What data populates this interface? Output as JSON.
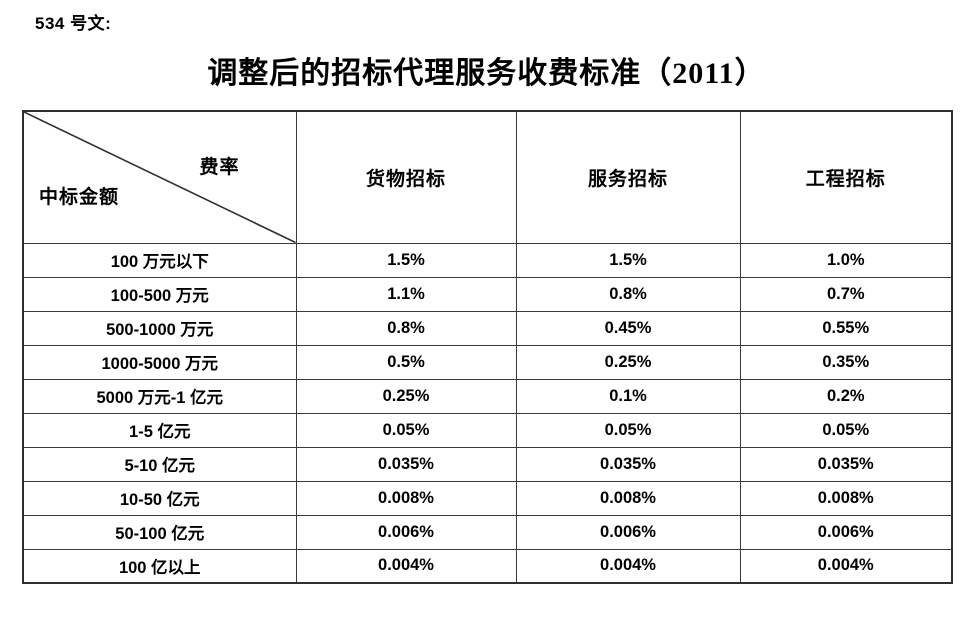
{
  "page": {
    "doc_label": "534 号文:",
    "title": "调整后的招标代理服务收费标准（2011）"
  },
  "table": {
    "corner": {
      "top_right": "费率",
      "bottom_left": "中标金额"
    },
    "columns": [
      "货物招标",
      "服务招标",
      "工程招标"
    ],
    "rows": [
      {
        "range": "100 万元以下",
        "values": [
          "1.5%",
          "1.5%",
          "1.0%"
        ]
      },
      {
        "range": "100-500 万元",
        "values": [
          "1.1%",
          "0.8%",
          "0.7%"
        ]
      },
      {
        "range": "500-1000 万元",
        "values": [
          "0.8%",
          "0.45%",
          "0.55%"
        ]
      },
      {
        "range": "1000-5000 万元",
        "values": [
          "0.5%",
          "0.25%",
          "0.35%"
        ]
      },
      {
        "range": "5000 万元-1 亿元",
        "values": [
          "0.25%",
          "0.1%",
          "0.2%"
        ]
      },
      {
        "range": "1-5 亿元",
        "values": [
          "0.05%",
          "0.05%",
          "0.05%"
        ]
      },
      {
        "range": "5-10 亿元",
        "values": [
          "0.035%",
          "0.035%",
          "0.035%"
        ]
      },
      {
        "range": "10-50 亿元",
        "values": [
          "0.008%",
          "0.008%",
          "0.008%"
        ]
      },
      {
        "range": "50-100 亿元",
        "values": [
          "0.006%",
          "0.006%",
          "0.006%"
        ]
      },
      {
        "range": "100 亿以上",
        "values": [
          "0.004%",
          "0.004%",
          "0.004%"
        ]
      }
    ]
  },
  "colors": {
    "text": "#000000",
    "border_inner": "#3a3a3a",
    "border_outer": "#2f2f2f",
    "background": "#ffffff"
  }
}
